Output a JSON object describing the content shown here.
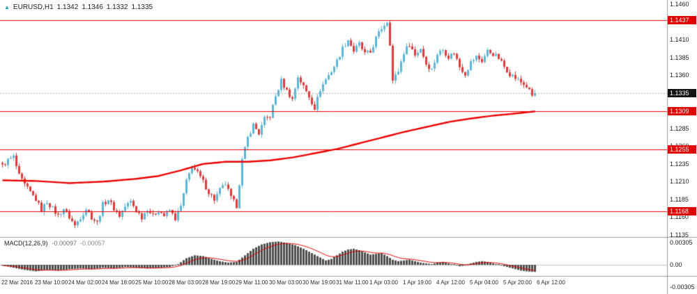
{
  "header": {
    "icon": "▲",
    "symbol": "EURUSD,H1",
    "open": "1.1342",
    "high": "1.1346",
    "low": "1.1332",
    "close": "1.1335"
  },
  "colors": {
    "bull": "#5ab6d8",
    "bear": "#e03a3a",
    "ma": "#ee0000",
    "level": "#ee0000",
    "current_line": "#a8a8a8",
    "hist": "#4d4d4d",
    "signal": "#e00000",
    "zero_line": "#c0c0c0",
    "divider": "#9a9a9a",
    "badge_level_bg": "#e00000",
    "badge_current_bg": "#141414"
  },
  "chart_data": [
    {
      "type": "candlestick",
      "title": "EURUSD,H1",
      "bars": 192,
      "price_axis": {
        "min": 1.1135,
        "max": 1.146,
        "tick_labels": [
          {
            "label": "1.1460",
            "price": 1.146
          },
          {
            "label": "1.1410",
            "price": 1.141
          },
          {
            "label": "1.1385",
            "price": 1.1385
          },
          {
            "label": "1.1360",
            "price": 1.136
          },
          {
            "label": "1.1285",
            "price": 1.1285
          },
          {
            "label": "1.1260",
            "price": 1.126
          },
          {
            "label": "1.1235",
            "price": 1.1235
          },
          {
            "label": "1.1210",
            "price": 1.121
          },
          {
            "label": "1.1185",
            "price": 1.1185
          },
          {
            "label": "1.1160",
            "price": 1.116
          },
          {
            "label": "1.1135",
            "price": 1.1135
          }
        ]
      },
      "level_lines": [
        {
          "label": "1.1437",
          "price": 1.1437
        },
        {
          "label": "1.1309",
          "price": 1.1309
        },
        {
          "label": "1.1255",
          "price": 1.1255
        },
        {
          "label": "1.1168",
          "price": 1.1168
        }
      ],
      "current_price": {
        "label": "1.1335",
        "price": 1.1335
      },
      "time_labels": [
        {
          "label": "22 Mar 2016",
          "bar": 0
        },
        {
          "label": "23 Mar 10:00",
          "bar": 12
        },
        {
          "label": "24 Mar 02:00",
          "bar": 24
        },
        {
          "label": "24 Mar 18:00",
          "bar": 36
        },
        {
          "label": "25 Mar 10:00",
          "bar": 48
        },
        {
          "label": "28 Mar 03:00",
          "bar": 60
        },
        {
          "label": "28 Mar 19:00",
          "bar": 72
        },
        {
          "label": "29 Mar 11:00",
          "bar": 84
        },
        {
          "label": "30 Mar 03:00",
          "bar": 96
        },
        {
          "label": "30 Mar 19:00",
          "bar": 108
        },
        {
          "label": "31 Mar 11:00",
          "bar": 120
        },
        {
          "label": "1 Apr 03:00",
          "bar": 132
        },
        {
          "label": "1 Apr 19:00",
          "bar": 144
        },
        {
          "label": "4 Apr 12:00",
          "bar": 156
        },
        {
          "label": "5 Apr 04:00",
          "bar": 168
        },
        {
          "label": "5 Apr 20:00",
          "bar": 180
        },
        {
          "label": "6 Apr 12:00",
          "bar": 192
        }
      ],
      "close_waypoints": [
        [
          0,
          1.1232
        ],
        [
          2,
          1.124
        ],
        [
          4,
          1.1245
        ],
        [
          6,
          1.1218
        ],
        [
          8,
          1.1205
        ],
        [
          10,
          1.1195
        ],
        [
          12,
          1.1185
        ],
        [
          14,
          1.117
        ],
        [
          16,
          1.1182
        ],
        [
          18,
          1.1172
        ],
        [
          20,
          1.1162
        ],
        [
          22,
          1.1172
        ],
        [
          24,
          1.116
        ],
        [
          26,
          1.1148
        ],
        [
          28,
          1.116
        ],
        [
          30,
          1.1172
        ],
        [
          32,
          1.116
        ],
        [
          34,
          1.1152
        ],
        [
          36,
          1.1178
        ],
        [
          38,
          1.1185
        ],
        [
          40,
          1.1172
        ],
        [
          42,
          1.1162
        ],
        [
          44,
          1.1175
        ],
        [
          46,
          1.1182
        ],
        [
          48,
          1.117
        ],
        [
          50,
          1.116
        ],
        [
          52,
          1.1172
        ],
        [
          54,
          1.1162
        ],
        [
          56,
          1.117
        ],
        [
          58,
          1.1162
        ],
        [
          60,
          1.117
        ],
        [
          62,
          1.1158
        ],
        [
          64,
          1.1175
        ],
        [
          66,
          1.121
        ],
        [
          68,
          1.1232
        ],
        [
          70,
          1.1222
        ],
        [
          72,
          1.121
        ],
        [
          74,
          1.1195
        ],
        [
          76,
          1.1185
        ],
        [
          78,
          1.1198
        ],
        [
          80,
          1.1207
        ],
        [
          82,
          1.1187
        ],
        [
          84,
          1.1176
        ],
        [
          86,
          1.124
        ],
        [
          88,
          1.1272
        ],
        [
          90,
          1.129
        ],
        [
          92,
          1.1278
        ],
        [
          94,
          1.1298
        ],
        [
          96,
          1.1302
        ],
        [
          98,
          1.133
        ],
        [
          100,
          1.1352
        ],
        [
          102,
          1.1338
        ],
        [
          104,
          1.1326
        ],
        [
          106,
          1.1358
        ],
        [
          108,
          1.1344
        ],
        [
          110,
          1.133
        ],
        [
          112,
          1.1314
        ],
        [
          114,
          1.134
        ],
        [
          116,
          1.1354
        ],
        [
          118,
          1.1366
        ],
        [
          120,
          1.138
        ],
        [
          122,
          1.1398
        ],
        [
          124,
          1.141
        ],
        [
          126,
          1.1394
        ],
        [
          128,
          1.1404
        ],
        [
          130,
          1.139
        ],
        [
          132,
          1.1392
        ],
        [
          134,
          1.1412
        ],
        [
          136,
          1.1426
        ],
        [
          138,
          1.1436
        ],
        [
          139,
          1.1405
        ],
        [
          140,
          1.1352
        ],
        [
          142,
          1.1366
        ],
        [
          144,
          1.1392
        ],
        [
          146,
          1.1404
        ],
        [
          148,
          1.1388
        ],
        [
          150,
          1.1398
        ],
        [
          152,
          1.1376
        ],
        [
          154,
          1.1368
        ],
        [
          156,
          1.139
        ],
        [
          158,
          1.1396
        ],
        [
          160,
          1.1386
        ],
        [
          162,
          1.1392
        ],
        [
          164,
          1.1372
        ],
        [
          166,
          1.1362
        ],
        [
          168,
          1.1378
        ],
        [
          170,
          1.1386
        ],
        [
          172,
          1.138
        ],
        [
          174,
          1.1394
        ],
        [
          176,
          1.139
        ],
        [
          178,
          1.1384
        ],
        [
          180,
          1.1372
        ],
        [
          182,
          1.1362
        ],
        [
          184,
          1.1356
        ],
        [
          186,
          1.135
        ],
        [
          188,
          1.1344
        ],
        [
          190,
          1.1331
        ],
        [
          191,
          1.1335
        ]
      ],
      "ma_waypoints": [
        [
          0,
          1.1212
        ],
        [
          12,
          1.1211
        ],
        [
          24,
          1.1208
        ],
        [
          36,
          1.121
        ],
        [
          48,
          1.1214
        ],
        [
          56,
          1.1218
        ],
        [
          64,
          1.1226
        ],
        [
          72,
          1.1235
        ],
        [
          80,
          1.1238
        ],
        [
          88,
          1.1238
        ],
        [
          96,
          1.124
        ],
        [
          104,
          1.1244
        ],
        [
          112,
          1.125
        ],
        [
          120,
          1.1256
        ],
        [
          128,
          1.1264
        ],
        [
          136,
          1.1272
        ],
        [
          144,
          1.128
        ],
        [
          152,
          1.1287
        ],
        [
          160,
          1.1294
        ],
        [
          168,
          1.1299
        ],
        [
          176,
          1.1303
        ],
        [
          184,
          1.1306
        ],
        [
          191,
          1.1309
        ]
      ]
    },
    {
      "type": "bar",
      "name": "MACD(12,26,9)",
      "main_value": "-0.00097",
      "signal_value": "-0.00057",
      "axis_labels": [
        {
          "label": "0.00305",
          "value": 0.00305
        },
        {
          "label": "0.00",
          "value": 0
        },
        {
          "label": "-0.00305",
          "value": -0.00305
        }
      ],
      "hist_waypoints": [
        [
          0,
          -0.0001
        ],
        [
          4,
          -0.0004
        ],
        [
          8,
          -0.0007
        ],
        [
          12,
          -0.0009
        ],
        [
          16,
          -0.0007
        ],
        [
          20,
          -0.0008
        ],
        [
          24,
          -0.0006
        ],
        [
          28,
          -0.0005
        ],
        [
          32,
          -0.0006
        ],
        [
          36,
          -0.0004
        ],
        [
          40,
          -0.0005
        ],
        [
          44,
          -0.0003
        ],
        [
          48,
          -0.0004
        ],
        [
          52,
          -0.0005
        ],
        [
          56,
          -0.0004
        ],
        [
          60,
          -0.0003
        ],
        [
          63,
          0.0001
        ],
        [
          66,
          0.0009
        ],
        [
          69,
          0.0013
        ],
        [
          72,
          0.0012
        ],
        [
          75,
          0.0008
        ],
        [
          78,
          0.0005
        ],
        [
          81,
          0.0003
        ],
        [
          84,
          0.0004
        ],
        [
          87,
          0.0013
        ],
        [
          90,
          0.0022
        ],
        [
          93,
          0.0028
        ],
        [
          96,
          0.0031
        ],
        [
          99,
          0.0032
        ],
        [
          102,
          0.003
        ],
        [
          105,
          0.0027
        ],
        [
          108,
          0.0022
        ],
        [
          111,
          0.0016
        ],
        [
          114,
          0.001
        ],
        [
          116,
          0.0006
        ],
        [
          118,
          0.0008
        ],
        [
          120,
          0.0013
        ],
        [
          122,
          0.0018
        ],
        [
          124,
          0.0021
        ],
        [
          126,
          0.0022
        ],
        [
          128,
          0.002
        ],
        [
          130,
          0.0017
        ],
        [
          132,
          0.0014
        ],
        [
          134,
          0.0015
        ],
        [
          136,
          0.0016
        ],
        [
          138,
          0.0012
        ],
        [
          140,
          0.0007
        ],
        [
          142,
          0.0005
        ],
        [
          144,
          0.0006
        ],
        [
          146,
          0.0007
        ],
        [
          148,
          0.0005
        ],
        [
          150,
          0.0003
        ],
        [
          152,
          0.0002
        ],
        [
          154,
          0.0001
        ],
        [
          156,
          0.0003
        ],
        [
          158,
          0.0004
        ],
        [
          160,
          0.0002
        ],
        [
          162,
          0.0
        ],
        [
          164,
          -0.0002
        ],
        [
          166,
          -0.0001
        ],
        [
          168,
          0.0002
        ],
        [
          170,
          0.0004
        ],
        [
          172,
          0.0005
        ],
        [
          174,
          0.0004
        ],
        [
          176,
          0.0002
        ],
        [
          178,
          0.0
        ],
        [
          180,
          -0.0002
        ],
        [
          182,
          -0.0004
        ],
        [
          184,
          -0.0006
        ],
        [
          186,
          -0.0008
        ],
        [
          188,
          -0.0009
        ],
        [
          191,
          -0.00097
        ]
      ]
    }
  ]
}
